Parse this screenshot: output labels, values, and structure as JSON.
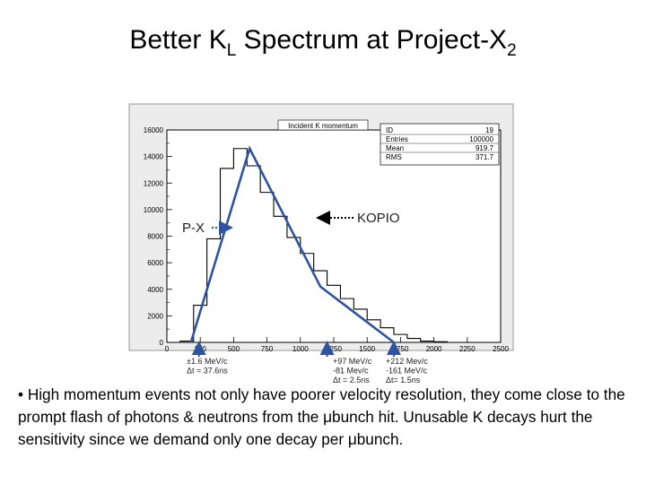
{
  "slide": {
    "title_parts": [
      "Better K",
      "L",
      " Spectrum at Project-X",
      "2"
    ]
  },
  "chart_data": {
    "type": "bar",
    "title": "Incident K momentum",
    "stats": [
      {
        "label": "ID",
        "value": "19"
      },
      {
        "label": "Entries",
        "value": "100000"
      },
      {
        "label": "Mean",
        "value": "919.7"
      },
      {
        "label": "RMS",
        "value": "371.7"
      }
    ],
    "xlim": [
      0,
      2500
    ],
    "ylim": [
      0,
      16000
    ],
    "x_ticks": [
      0,
      250,
      500,
      750,
      1000,
      1250,
      1500,
      1750,
      2000,
      2250,
      2500
    ],
    "y_ticks": [
      0,
      2000,
      4000,
      6000,
      8000,
      10000,
      12000,
      14000,
      16000
    ],
    "bin_edges": [
      0,
      100,
      200,
      300,
      400,
      500,
      600,
      700,
      800,
      900,
      1000,
      1100,
      1200,
      1300,
      1400,
      1500,
      1600,
      1700,
      1800,
      1900,
      2000,
      2100,
      2200,
      2300,
      2400,
      2500
    ],
    "counts": [
      0,
      100,
      2800,
      7800,
      13100,
      14600,
      13300,
      11300,
      9500,
      7900,
      6700,
      5400,
      4300,
      3300,
      2500,
      1700,
      1100,
      600,
      300,
      100,
      50,
      0,
      0,
      0,
      0
    ],
    "px_curve": {
      "name": "P-X",
      "points": [
        [
          180,
          0
        ],
        [
          620,
          14600
        ],
        [
          1150,
          4200
        ],
        [
          1700,
          0
        ]
      ]
    },
    "annotations": [
      {
        "name": "P-X",
        "text": "P-X"
      },
      {
        "name": "KOPIO",
        "text": "KOPIO"
      }
    ],
    "below_axis_notes": [
      {
        "x": 240,
        "lines": [
          "±1.6 MeV/c",
          "Δt = 37.6ns"
        ]
      },
      {
        "x": 1200,
        "lines": [
          "+97 MeV/c",
          "-81 Mev/c",
          "Δt = 2.5ns"
        ]
      },
      {
        "x": 1700,
        "lines": [
          "+212 Mev/c",
          "-161 MeV/c",
          "Δt= 1.5ns"
        ]
      }
    ],
    "colors": {
      "curve": "#2e54a0",
      "histogram": "#000000",
      "arrow": "#2e54a0"
    }
  },
  "bullet": {
    "marker": "•",
    "text": "High momentum events not only have poorer velocity resolution, they come close to the prompt flash of photons & neutrons from the μbunch hit.  Unusable K decays hurt the sensitivity since we demand only one decay per μbunch."
  }
}
